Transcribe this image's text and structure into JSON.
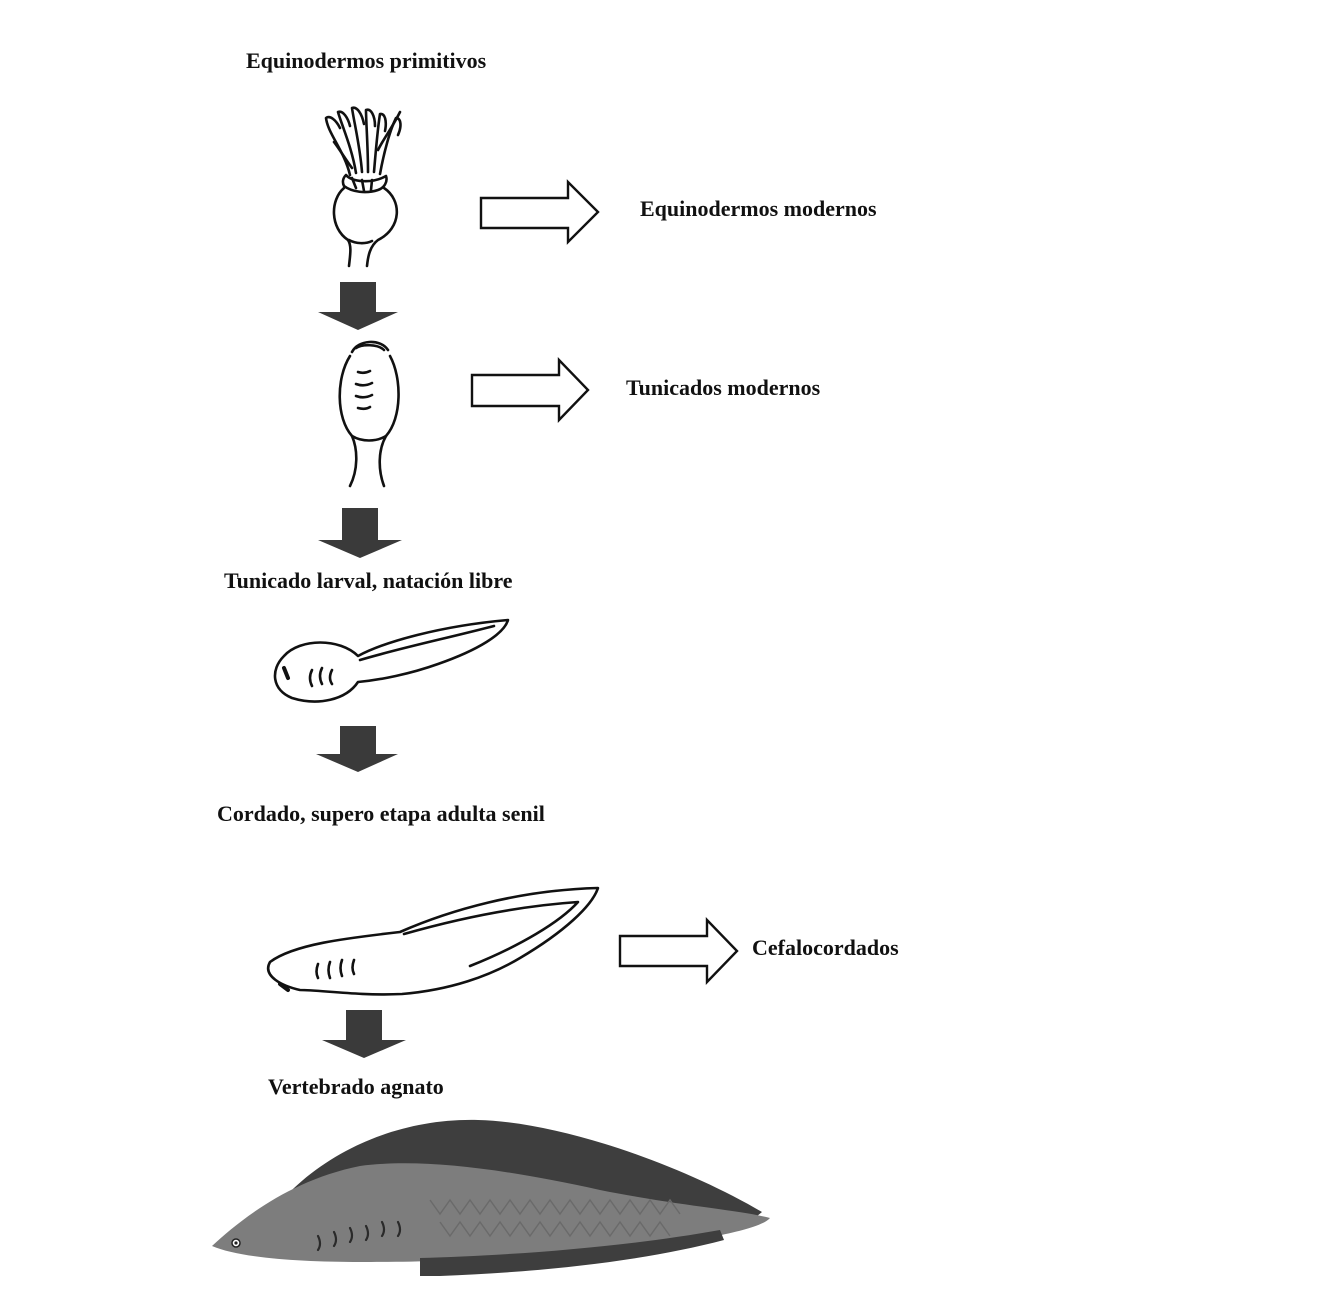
{
  "labels": {
    "primitive_echinoderms": "Equinodermos primitivos",
    "modern_echinoderms": "Equinodermos modernos",
    "modern_tunicates": "Tunicados modernos",
    "larval_tunicate": "Tunicado larval, natación libre",
    "chordate_stage": "Cordado, supero etapa adulta senil",
    "cephalochordates": "Cefalocordados",
    "agnathan_vertebrate": "Vertebrado agnato"
  },
  "colors": {
    "line": "#111111",
    "down_arrow_fill": "#3a3a3a",
    "side_arrow_fill": "#ffffff",
    "fish_dark": "#3e3e3e",
    "fish_body": "#7d7d7d",
    "fish_pattern": "#6a6a6a"
  }
}
